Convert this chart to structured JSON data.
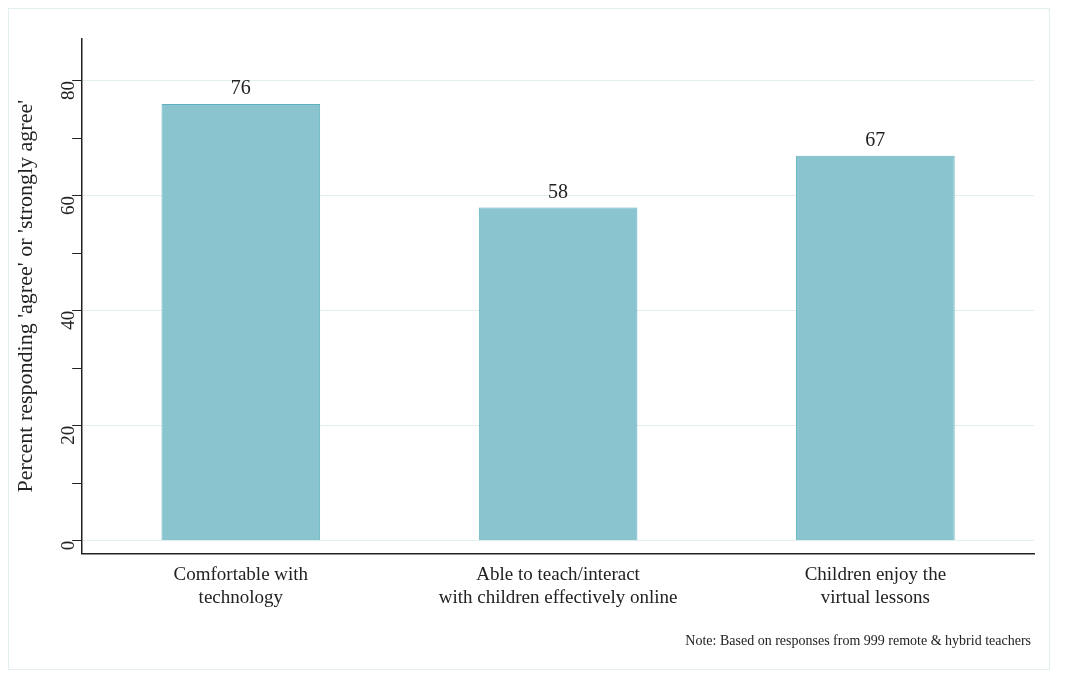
{
  "chart_data": {
    "type": "bar",
    "ylabel": "Percent responding 'agree' or 'strongly agree'",
    "categories": [
      "Comfortable with\ntechnology",
      "Able to teach/interact\nwith children effectively online",
      "Children enjoy the\nvirtual lessons"
    ],
    "values": [
      76,
      58,
      67
    ],
    "color": "#8ac4cf",
    "data_labels": true,
    "ylim": [
      -2.2,
      87.3
    ],
    "yticks": [
      0,
      {
        "value": 10,
        "label": null
      },
      20,
      {
        "value": 30,
        "label": null
      },
      40,
      {
        "value": 50,
        "label": null
      },
      60,
      {
        "value": 70,
        "label": null
      },
      80
    ],
    "grid": "y",
    "annotations": [
      "Note: Based on responses from 999 remote & hybrid teachers"
    ]
  }
}
